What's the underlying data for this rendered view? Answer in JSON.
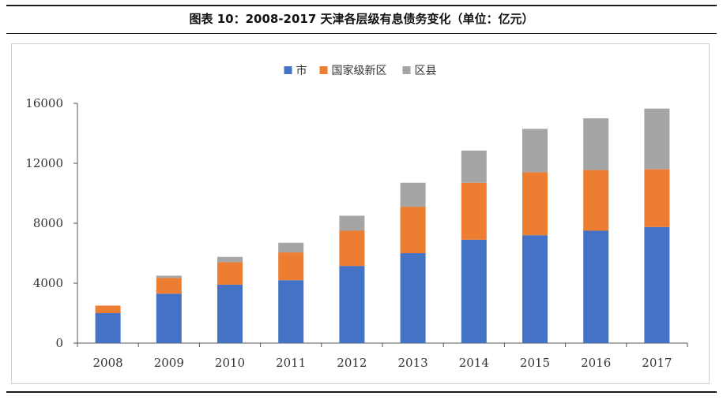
{
  "caption": "图表 10：2008-2017 天津各层级有息债务变化（单位：亿元）",
  "chart_data": {
    "type": "bar",
    "stacked": true,
    "title": "",
    "xlabel": "",
    "ylabel": "",
    "categories": [
      "2008",
      "2009",
      "2010",
      "2011",
      "2012",
      "2013",
      "2014",
      "2015",
      "2016",
      "2017"
    ],
    "series": [
      {
        "name": "市",
        "color": "#4472c4",
        "values": [
          2000,
          3300,
          3900,
          4200,
          5150,
          6000,
          6900,
          7200,
          7500,
          7750
        ]
      },
      {
        "name": "国家级新区",
        "color": "#ed7d31",
        "values": [
          500,
          1050,
          1500,
          1850,
          2350,
          3100,
          3800,
          4200,
          4050,
          3850
        ]
      },
      {
        "name": "区县",
        "color": "#a5a5a5",
        "values": [
          0,
          150,
          350,
          650,
          1000,
          1600,
          2150,
          2900,
          3450,
          4050
        ]
      }
    ],
    "ylim": [
      0,
      16000
    ],
    "yticks": [
      0,
      4000,
      8000,
      12000,
      16000
    ],
    "grid": false,
    "legend_position": "top"
  }
}
